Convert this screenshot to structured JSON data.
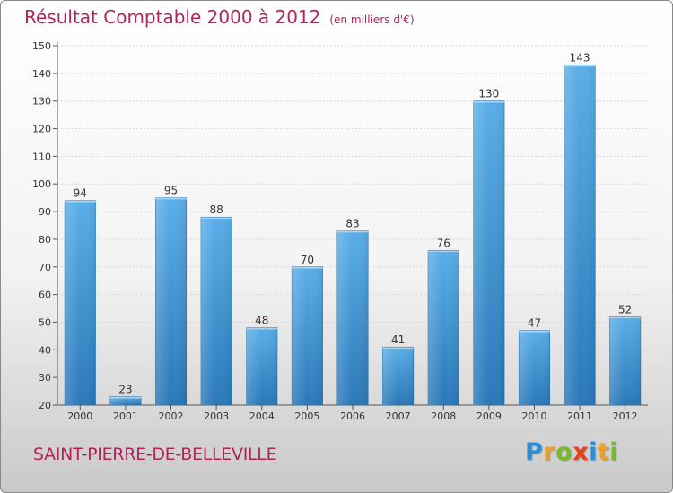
{
  "header": {
    "title": "Résultat Comptable 2000 à 2012",
    "subtitle": "(en milliers d'€)"
  },
  "footer": {
    "town": "SAINT-PIERRE-DE-BELLEVILLE",
    "logo_letters": [
      "P",
      "r",
      "o",
      "x",
      "i",
      "t",
      "i"
    ],
    "logo_colors": [
      "#2a8fd8",
      "#f0a020",
      "#79b82a",
      "#e8401c",
      "#2a8fd8",
      "#f0a020",
      "#79b82a"
    ]
  },
  "chart_data": {
    "type": "bar",
    "title": "Résultat Comptable 2000 à 2012",
    "subtitle": "(en milliers d'€)",
    "categories": [
      "2000",
      "2001",
      "2002",
      "2003",
      "2004",
      "2005",
      "2006",
      "2007",
      "2008",
      "2009",
      "2010",
      "2011",
      "2012"
    ],
    "values": [
      94,
      23,
      95,
      88,
      48,
      70,
      83,
      41,
      76,
      130,
      47,
      143,
      52
    ],
    "value_labels": [
      "94",
      "23",
      "95",
      "88",
      "48",
      "70",
      "83",
      "41",
      "76",
      "130",
      "47",
      "143",
      "52"
    ],
    "yticks": [
      "20",
      "30",
      "40",
      "50",
      "60",
      "70",
      "80",
      "90",
      "100",
      "110",
      "120",
      "130",
      "140",
      "150"
    ],
    "ylim": [
      20,
      150
    ],
    "grid": true,
    "bar_color_top": "#5aaee8",
    "bar_color_bottom": "#2a78b8"
  }
}
